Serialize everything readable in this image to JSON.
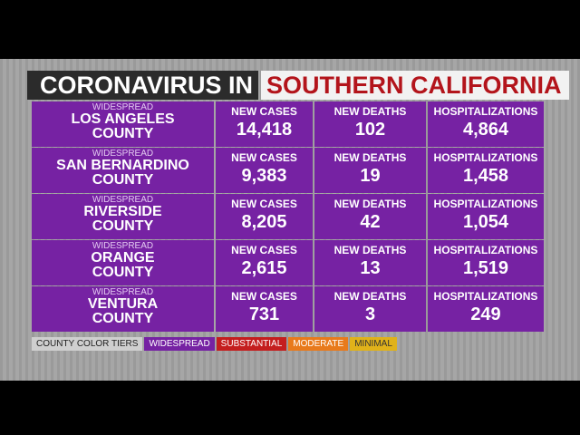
{
  "header": {
    "title_part1": "CORONAVIRUS IN",
    "title_part2": "SOUTHERN CALIFORNIA"
  },
  "table": {
    "rows": [
      {
        "tier": "WIDESPREAD",
        "county": [
          "LOS ANGELES",
          "COUNTY"
        ],
        "cells": [
          {
            "label": "NEW CASES",
            "value": "14,418"
          },
          {
            "label": "NEW DEATHS",
            "value": "102"
          },
          {
            "label": "HOSPITALIZATIONS",
            "value": "4,864"
          }
        ]
      },
      {
        "tier": "WIDESPREAD",
        "county": [
          "SAN BERNARDINO",
          "COUNTY"
        ],
        "cells": [
          {
            "label": "NEW CASES",
            "value": "9,383"
          },
          {
            "label": "NEW DEATHS",
            "value": "19"
          },
          {
            "label": "HOSPITALIZATIONS",
            "value": "1,458"
          }
        ]
      },
      {
        "tier": "WIDESPREAD",
        "county": [
          "RIVERSIDE",
          "COUNTY"
        ],
        "cells": [
          {
            "label": "NEW CASES",
            "value": "8,205"
          },
          {
            "label": "NEW DEATHS",
            "value": "42"
          },
          {
            "label": "HOSPITALIZATIONS",
            "value": "1,054"
          }
        ]
      },
      {
        "tier": "WIDESPREAD",
        "county": [
          "ORANGE",
          "COUNTY"
        ],
        "cells": [
          {
            "label": "NEW CASES",
            "value": "2,615"
          },
          {
            "label": "NEW DEATHS",
            "value": "13"
          },
          {
            "label": "HOSPITALIZATIONS",
            "value": "1,519"
          }
        ]
      },
      {
        "tier": "WIDESPREAD",
        "county": [
          "VENTURA",
          "COUNTY"
        ],
        "cells": [
          {
            "label": "NEW CASES",
            "value": "731"
          },
          {
            "label": "NEW DEATHS",
            "value": "3"
          },
          {
            "label": "HOSPITALIZATIONS",
            "value": "249"
          }
        ]
      }
    ]
  },
  "legend": {
    "items": [
      {
        "label": "COUNTY COLOR TIERS",
        "color": "#cfcfcf",
        "text_color": "#222222"
      },
      {
        "label": "WIDESPREAD",
        "color": "#7622a3",
        "text_color": "#ffffff"
      },
      {
        "label": "SUBSTANTIAL",
        "color": "#c41e1e",
        "text_color": "#ffffff"
      },
      {
        "label": "MODERATE",
        "color": "#e87a1c",
        "text_color": "#ffffff"
      },
      {
        "label": "MINIMAL",
        "color": "#e0b21a",
        "text_color": "#333333"
      }
    ]
  }
}
